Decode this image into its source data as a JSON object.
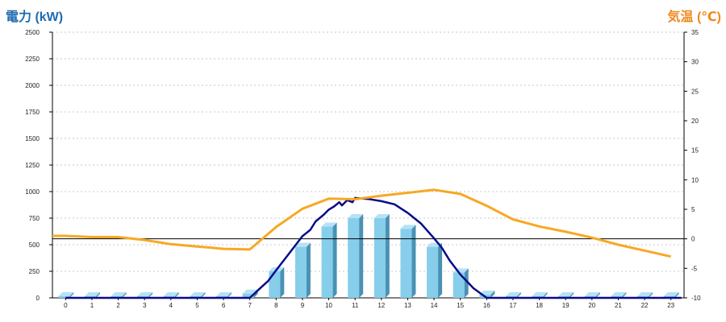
{
  "titles": {
    "left_axis": "電力 (kW)",
    "right_axis": "気温 (℃)"
  },
  "colors": {
    "bar_front": "#87ceeb",
    "bar_side": "#4a92b4",
    "bar_top": "#b5e2f5",
    "power_line": "#0b0b8a",
    "temp_line": "#f7a823",
    "grid": "#c8c8c8",
    "zero_line": "#000000"
  },
  "chart_data": {
    "type": "bar+line",
    "categories": [
      "0",
      "1",
      "2",
      "3",
      "4",
      "5",
      "6",
      "7",
      "8",
      "9",
      "10",
      "11",
      "12",
      "13",
      "14",
      "15",
      "16",
      "17",
      "18",
      "19",
      "20",
      "21",
      "22",
      "23"
    ],
    "bars": {
      "values": [
        0,
        0,
        0,
        0,
        0,
        0,
        0,
        40,
        250,
        480,
        670,
        750,
        750,
        650,
        480,
        240,
        30,
        0,
        0,
        0,
        0,
        0,
        0,
        0
      ],
      "axis": "left"
    },
    "power_line": {
      "axis": "left",
      "x": [
        0,
        7,
        7.3,
        7.7,
        8,
        8.5,
        9,
        9.3,
        9.5,
        9.8,
        10,
        10.2,
        10.4,
        10.5,
        10.7,
        10.9,
        11,
        11.5,
        12,
        12.5,
        13,
        13.5,
        14,
        14.3,
        14.6,
        15,
        15.5,
        16,
        23.4
      ],
      "y": [
        0,
        0,
        70,
        160,
        260,
        420,
        580,
        640,
        720,
        780,
        830,
        860,
        900,
        870,
        920,
        900,
        940,
        930,
        910,
        880,
        800,
        700,
        560,
        470,
        350,
        220,
        90,
        0,
        0
      ]
    },
    "temperature": {
      "axis": "right",
      "x": [
        -0.5,
        0,
        1,
        2,
        3,
        4,
        5,
        6,
        7,
        8,
        9,
        10,
        11,
        12,
        13,
        14,
        15,
        16,
        17,
        18,
        19,
        20,
        21,
        22,
        23
      ],
      "y": [
        0.5,
        0.5,
        0.3,
        0.3,
        -0.2,
        -0.9,
        -1.3,
        -1.7,
        -1.8,
        2.0,
        5.1,
        6.8,
        6.7,
        7.3,
        7.8,
        8.3,
        7.6,
        5.6,
        3.3,
        2.1,
        1.2,
        0.2,
        -1.0,
        -2.0,
        -3.0
      ]
    },
    "y_left": {
      "min": 0,
      "max": 2500,
      "ticks": [
        "0",
        "250",
        "500",
        "750",
        "1000",
        "1250",
        "1500",
        "1750",
        "2000",
        "2250",
        "2500"
      ]
    },
    "y_right": {
      "min": -10,
      "max": 35,
      "ticks": [
        "-10",
        "-5",
        "0",
        "5",
        "10",
        "15",
        "20",
        "25",
        "30",
        "35"
      ]
    },
    "grid": true
  }
}
